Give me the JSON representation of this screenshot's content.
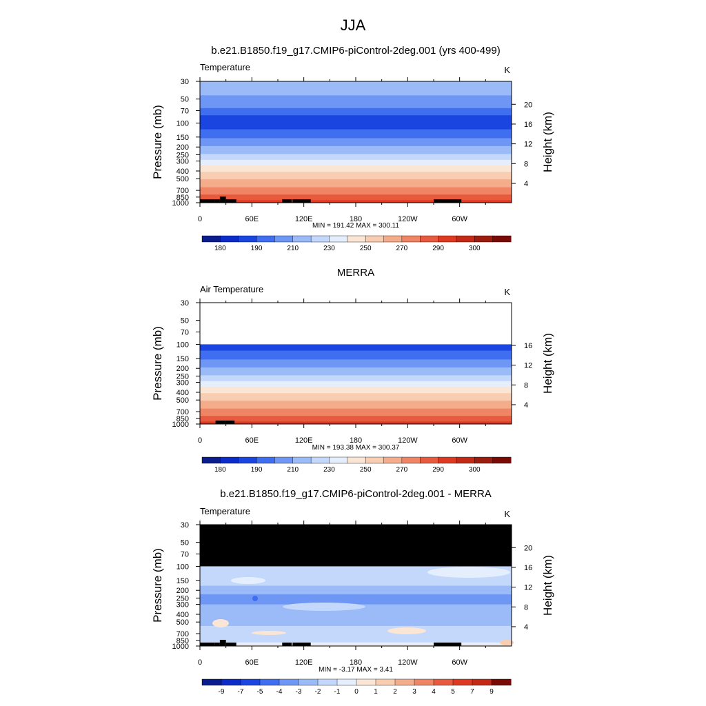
{
  "figure": {
    "title": "JJA"
  },
  "chart_data": [
    {
      "type": "heatmap",
      "title": "b.e21.B1850.f19_g17.CMIP6-piControl-2deg.001 (yrs 400-499)",
      "left_label": "Temperature",
      "right_label": "K",
      "ylabel": "Pressure (mb)",
      "ylabel_right": "Height (km)",
      "x_ticks": [
        "0",
        "60E",
        "120E",
        "180",
        "120W",
        "60W"
      ],
      "x_tick_lon": [
        0,
        60,
        120,
        180,
        240,
        300
      ],
      "xlim": [
        0,
        360
      ],
      "y_ticks": [
        "30",
        "50",
        "70",
        "100",
        "150",
        "200",
        "250",
        "300",
        "400",
        "500",
        "700",
        "850",
        "1000"
      ],
      "y_tick_p": [
        30,
        50,
        70,
        100,
        150,
        200,
        250,
        300,
        400,
        500,
        700,
        850,
        1000
      ],
      "ylim": [
        30,
        1000
      ],
      "y_scale": "log",
      "height_ticks": [
        "20",
        "16",
        "12",
        "8",
        "4"
      ],
      "height_tick_km": [
        20,
        16,
        12,
        8,
        4
      ],
      "stats": "MIN = 191.42  MAX = 300.11",
      "colorbar_labels": [
        "180",
        "190",
        "210",
        "230",
        "250",
        "270",
        "290",
        "300"
      ],
      "colorbar_colors": [
        "#0b1c8c",
        "#0b2cc8",
        "#1a45e0",
        "#3f6ef0",
        "#6e96f5",
        "#9bbaf8",
        "#c4d8fb",
        "#e4eefc",
        "#fbe6d6",
        "#f8cdb1",
        "#f4ac8b",
        "#ef8564",
        "#e85a3e",
        "#de3a22",
        "#c22a16",
        "#9c1c0e",
        "#7a0a06"
      ],
      "profile": [
        {
          "p": 30,
          "color": "#9bbaf8"
        },
        {
          "p": 45,
          "color": "#6e96f5"
        },
        {
          "p": 65,
          "color": "#3f6ef0"
        },
        {
          "p": 80,
          "color": "#1a45e0"
        },
        {
          "p": 120,
          "color": "#3f6ef0"
        },
        {
          "p": 155,
          "color": "#6e96f5"
        },
        {
          "p": 195,
          "color": "#9bbaf8"
        },
        {
          "p": 245,
          "color": "#c4d8fb"
        },
        {
          "p": 290,
          "color": "#e4eefc"
        },
        {
          "p": 340,
          "color": "#fbe6d6"
        },
        {
          "p": 410,
          "color": "#f8cdb1"
        },
        {
          "p": 510,
          "color": "#f4ac8b"
        },
        {
          "p": 640,
          "color": "#ef8564"
        },
        {
          "p": 790,
          "color": "#e85a3e"
        },
        {
          "p": 930,
          "color": "#de3a22"
        }
      ],
      "masked_top_p": null,
      "topography": [
        [
          0,
          17
        ],
        [
          17,
          23
        ],
        [
          23,
          30
        ],
        [
          30,
          42
        ],
        [
          95,
          106
        ],
        [
          107,
          128
        ],
        [
          270,
          302
        ]
      ]
    },
    {
      "type": "heatmap",
      "title": "MERRA",
      "left_label": "Air Temperature",
      "right_label": "K",
      "ylabel": "Pressure (mb)",
      "ylabel_right": "Height (km)",
      "x_ticks": [
        "0",
        "60E",
        "120E",
        "180",
        "120W",
        "60W"
      ],
      "x_tick_lon": [
        0,
        60,
        120,
        180,
        240,
        300
      ],
      "xlim": [
        0,
        360
      ],
      "y_ticks": [
        "30",
        "50",
        "70",
        "100",
        "150",
        "200",
        "250",
        "300",
        "400",
        "500",
        "700",
        "850",
        "1000"
      ],
      "y_tick_p": [
        30,
        50,
        70,
        100,
        150,
        200,
        250,
        300,
        400,
        500,
        700,
        850,
        1000
      ],
      "ylim": [
        30,
        1000
      ],
      "y_scale": "log",
      "height_ticks": [
        "16",
        "12",
        "8",
        "4"
      ],
      "height_tick_km": [
        16,
        12,
        8,
        4
      ],
      "stats": "MIN = 193.38  MAX = 300.37",
      "colorbar_labels": [
        "180",
        "190",
        "210",
        "230",
        "250",
        "270",
        "290",
        "300"
      ],
      "colorbar_colors": [
        "#0b1c8c",
        "#0b2cc8",
        "#1a45e0",
        "#3f6ef0",
        "#6e96f5",
        "#9bbaf8",
        "#c4d8fb",
        "#e4eefc",
        "#fbe6d6",
        "#f8cdb1",
        "#f4ac8b",
        "#ef8564",
        "#e85a3e",
        "#de3a22",
        "#c22a16",
        "#9c1c0e",
        "#7a0a06"
      ],
      "profile": [
        {
          "p": 30,
          "color": "#ffffff"
        },
        {
          "p": 100,
          "color": "#1a45e0"
        },
        {
          "p": 120,
          "color": "#3f6ef0"
        },
        {
          "p": 155,
          "color": "#6e96f5"
        },
        {
          "p": 195,
          "color": "#9bbaf8"
        },
        {
          "p": 245,
          "color": "#c4d8fb"
        },
        {
          "p": 290,
          "color": "#e4eefc"
        },
        {
          "p": 340,
          "color": "#fbe6d6"
        },
        {
          "p": 410,
          "color": "#f8cdb1"
        },
        {
          "p": 510,
          "color": "#f4ac8b"
        },
        {
          "p": 640,
          "color": "#ef8564"
        },
        {
          "p": 790,
          "color": "#e85a3e"
        },
        {
          "p": 930,
          "color": "#de3a22"
        }
      ],
      "masked_top_p": null,
      "topography": [
        [
          18,
          30
        ],
        [
          30,
          40
        ]
      ]
    },
    {
      "type": "heatmap",
      "title": "b.e21.B1850.f19_g17.CMIP6-piControl-2deg.001 - MERRA",
      "left_label": "Temperature",
      "right_label": "K",
      "ylabel": "Pressure (mb)",
      "ylabel_right": "Height (km)",
      "x_ticks": [
        "0",
        "60E",
        "120E",
        "180",
        "120W",
        "60W"
      ],
      "x_tick_lon": [
        0,
        60,
        120,
        180,
        240,
        300
      ],
      "xlim": [
        0,
        360
      ],
      "y_ticks": [
        "30",
        "50",
        "70",
        "100",
        "150",
        "200",
        "250",
        "300",
        "400",
        "500",
        "700",
        "850",
        "1000"
      ],
      "y_tick_p": [
        30,
        50,
        70,
        100,
        150,
        200,
        250,
        300,
        400,
        500,
        700,
        850,
        1000
      ],
      "ylim": [
        30,
        1000
      ],
      "y_scale": "log",
      "height_ticks": [
        "20",
        "16",
        "12",
        "8",
        "4"
      ],
      "height_tick_km": [
        20,
        16,
        12,
        8,
        4
      ],
      "stats": "MIN =  -3.17  MAX =   3.41",
      "colorbar_labels": [
        "-9",
        "-7",
        "-5",
        "-4",
        "-3",
        "-2",
        "-1",
        "0",
        "1",
        "2",
        "3",
        "4",
        "5",
        "7",
        "9"
      ],
      "colorbar_colors": [
        "#0b1c8c",
        "#0b2cc8",
        "#1a45e0",
        "#3f6ef0",
        "#6e96f5",
        "#9bbaf8",
        "#c4d8fb",
        "#e4eefc",
        "#fbe6d6",
        "#f8cdb1",
        "#f4ac8b",
        "#ef8564",
        "#e85a3e",
        "#de3a22",
        "#c22a16",
        "#7a0a06"
      ],
      "profile": [
        {
          "p": 100,
          "color": "#c4d8fb"
        },
        {
          "p": 175,
          "color": "#9bbaf8"
        },
        {
          "p": 225,
          "color": "#6e96f5"
        },
        {
          "p": 300,
          "color": "#9bbaf8"
        },
        {
          "p": 560,
          "color": "#c4d8fb"
        },
        {
          "p": 900,
          "color": "#e4eefc"
        },
        {
          "p": 960,
          "color": "#fbe6d6"
        }
      ],
      "masked_top_p": 100,
      "topography": [
        [
          0,
          17
        ],
        [
          17,
          23
        ],
        [
          23,
          30
        ],
        [
          30,
          42
        ],
        [
          95,
          106
        ],
        [
          107,
          128
        ],
        [
          270,
          302
        ]
      ]
    }
  ]
}
